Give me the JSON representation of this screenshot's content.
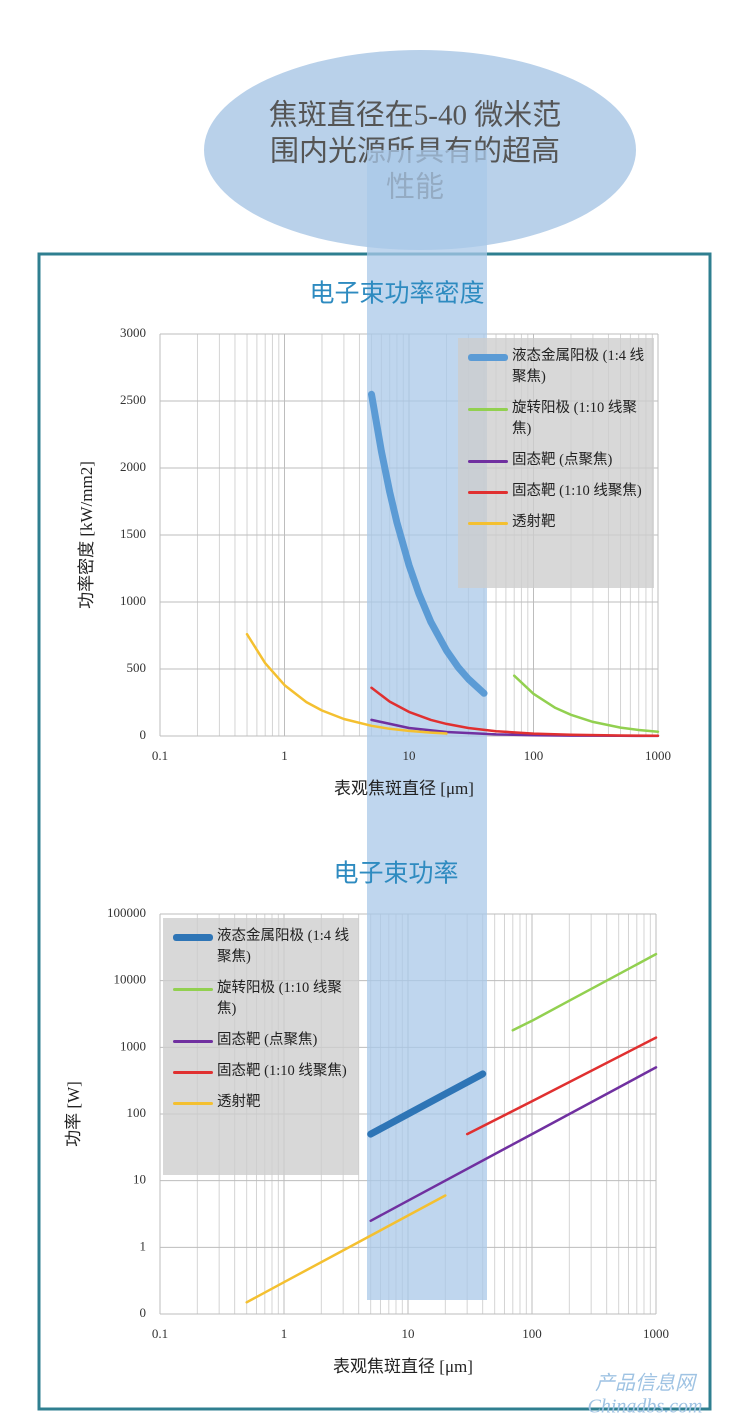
{
  "callout": [
    "焦斑直径在5-40 微米范",
    "围内光源所具有的超高",
    "性能"
  ],
  "watermark": [
    "产品信息网",
    "Chinadbs.com"
  ],
  "chart_data": [
    {
      "type": "line",
      "title": "电子束功率密度",
      "x_label": "表观焦斑直径 [μm]",
      "y_label": "功率密度 [kW/mm2]",
      "xscale": "log",
      "yscale": "linear",
      "xlim": [
        0.1,
        1000
      ],
      "xticks": [
        0.1,
        1,
        10,
        100,
        1000
      ],
      "ylim": [
        0,
        3000
      ],
      "yticks": [
        0,
        500,
        1000,
        1500,
        2000,
        2500,
        3000
      ],
      "grid": true,
      "legend": "upper right",
      "series": [
        {
          "name": "液态金属阳极 (1:4 线聚焦)",
          "color": "#5b9bd5",
          "x": [
            5,
            6,
            7,
            8,
            10,
            12,
            15,
            20,
            25,
            30,
            40
          ],
          "values": [
            2550,
            2125,
            1821,
            1594,
            1275,
            1063,
            850,
            638,
            510,
            425,
            319
          ]
        },
        {
          "name": "旋转阳极 (1:10 线聚焦)",
          "color": "#92d050",
          "x": [
            70,
            100,
            150,
            200,
            300,
            500,
            700,
            1000
          ],
          "values": [
            450,
            315,
            210,
            158,
            105,
            63,
            45,
            32
          ]
        },
        {
          "name": "固态靶 (点聚焦)",
          "color": "#7030a0",
          "x": [
            5,
            10,
            20,
            50,
            100,
            200,
            500,
            1000
          ],
          "values": [
            120,
            60,
            30,
            12,
            6,
            3,
            1.2,
            0.6
          ]
        },
        {
          "name": "固态靶 (1:10 线聚焦)",
          "color": "#e03030",
          "x": [
            5,
            7,
            10,
            15,
            20,
            30,
            50,
            100,
            200,
            500,
            1000
          ],
          "values": [
            360,
            257,
            180,
            120,
            90,
            60,
            36,
            18,
            9,
            3.6,
            1.8
          ]
        },
        {
          "name": "透射靶",
          "color": "#f4c030",
          "x": [
            0.5,
            0.7,
            1,
            1.5,
            2,
            3,
            5,
            7,
            10,
            15,
            20
          ],
          "values": [
            760,
            543,
            380,
            253,
            190,
            127,
            76,
            54,
            38,
            25,
            19
          ]
        }
      ]
    },
    {
      "type": "line",
      "title": "电子束功率",
      "x_label": "表观焦斑直径 [μm]",
      "y_label": "功率 [W]",
      "xscale": "log",
      "yscale": "log",
      "xlim": [
        0.1,
        1000
      ],
      "xticks": [
        0.1,
        1,
        10,
        100,
        1000
      ],
      "ylim": [
        0.1,
        100000
      ],
      "yticks": [
        {
          "value": 0.1,
          "label": "0"
        },
        1,
        10,
        100,
        1000,
        10000,
        100000
      ],
      "grid": true,
      "legend": "upper left",
      "series": [
        {
          "name": "液态金属阳极 (1:4 线聚焦)",
          "color": "#2e75b6",
          "x": [
            5,
            10,
            20,
            40
          ],
          "values": [
            50,
            100,
            200,
            400
          ]
        },
        {
          "name": "旋转阳极 (1:10 线聚焦)",
          "color": "#92d050",
          "x": [
            70,
            100,
            200,
            500,
            1000
          ],
          "values": [
            1800,
            2500,
            5000,
            12500,
            25000
          ]
        },
        {
          "name": "固态靶 (点聚焦)",
          "color": "#7030a0",
          "x": [
            5,
            10,
            100,
            1000
          ],
          "values": [
            2.5,
            5,
            50,
            500
          ]
        },
        {
          "name": "固态靶 (1:10 线聚焦)",
          "color": "#e03030",
          "x": [
            30,
            100,
            1000
          ],
          "values": [
            50,
            155,
            1400
          ]
        },
        {
          "name": "透射靶",
          "color": "#f4c030",
          "x": [
            0.5,
            1,
            5,
            20
          ],
          "values": [
            0.15,
            0.3,
            1.5,
            6
          ]
        }
      ]
    }
  ]
}
